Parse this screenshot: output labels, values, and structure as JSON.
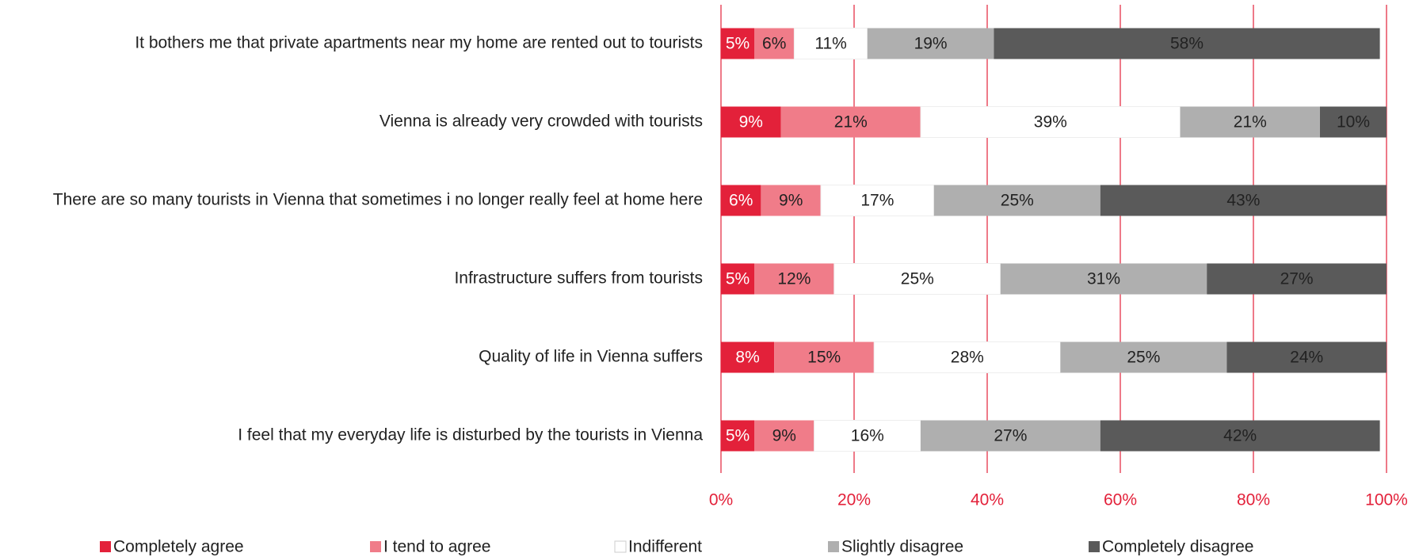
{
  "chart_data": {
    "type": "stacked-bar-horizontal",
    "categories": [
      "It bothers me that private apartments near my home are rented out to tourists",
      "Vienna is already very crowded with tourists",
      "There are so many tourists in Vienna that sometimes i no longer really feel at home here",
      "Infrastructure suffers from tourists",
      "Quality of life in Vienna suffers",
      "I feel that my everyday life is disturbed by the tourists in Vienna"
    ],
    "series": [
      {
        "name": "Completely agree",
        "color": "#e3213a",
        "values": [
          5,
          9,
          6,
          5,
          8,
          5
        ],
        "value_labels": [
          "5%",
          "9%",
          "6%",
          "5%",
          "8%",
          "5%"
        ]
      },
      {
        "name": "I tend to agree",
        "color": "#f07c89",
        "values": [
          6,
          21,
          9,
          12,
          15,
          9
        ],
        "value_labels": [
          "6%",
          "21%",
          "9%",
          "12%",
          "15%",
          "9%"
        ]
      },
      {
        "name": "Indifferent",
        "color": "#ffffff",
        "values": [
          11,
          39,
          17,
          25,
          28,
          16
        ],
        "value_labels": [
          "11%",
          "39%",
          "17%",
          "25%",
          "28%",
          "16%"
        ]
      },
      {
        "name": "Slightly disagree",
        "color": "#afafaf",
        "values": [
          19,
          21,
          25,
          31,
          25,
          27
        ],
        "value_labels": [
          "19%",
          "21%",
          "25%",
          "31%",
          "25%",
          "27%"
        ]
      },
      {
        "name": "Completely disagree",
        "color": "#5a5a5a",
        "values": [
          58,
          10,
          43,
          27,
          24,
          42
        ],
        "value_labels": [
          "58%",
          "10%",
          "43%",
          "27%",
          "24%",
          "42%"
        ]
      }
    ],
    "xlim": [
      0,
      100
    ],
    "xticks": [
      {
        "value": 0,
        "label": "0%"
      },
      {
        "value": 20,
        "label": "20%"
      },
      {
        "value": 40,
        "label": "40%"
      },
      {
        "value": 60,
        "label": "60%"
      },
      {
        "value": 80,
        "label": "80%"
      },
      {
        "value": 100,
        "label": "100%"
      }
    ],
    "grid": true,
    "grid_color": "#e3213a",
    "legend": "bottom"
  }
}
